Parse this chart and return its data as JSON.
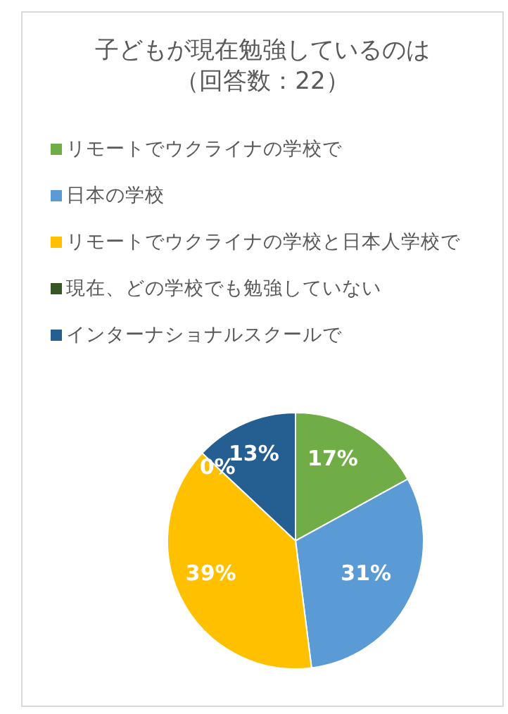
{
  "chart_data": {
    "type": "pie",
    "title": "子どもが現在勉強しているのは",
    "subtitle": "（回答数：22）",
    "categories": [
      "リモートでウクライナの学校で",
      "日本の学校",
      "リモートでウクライナの学校と日本人学校で",
      "現在、どの学校でも勉強していない",
      "インターナショナルスクールで"
    ],
    "values": [
      17,
      31,
      39,
      0,
      13
    ],
    "colors": [
      "#70ad47",
      "#5b9bd5",
      "#ffc000",
      "#375623",
      "#255e91"
    ],
    "value_labels": [
      "17%",
      "31%",
      "39%",
      "0%",
      "13%"
    ],
    "legend": "top left"
  }
}
